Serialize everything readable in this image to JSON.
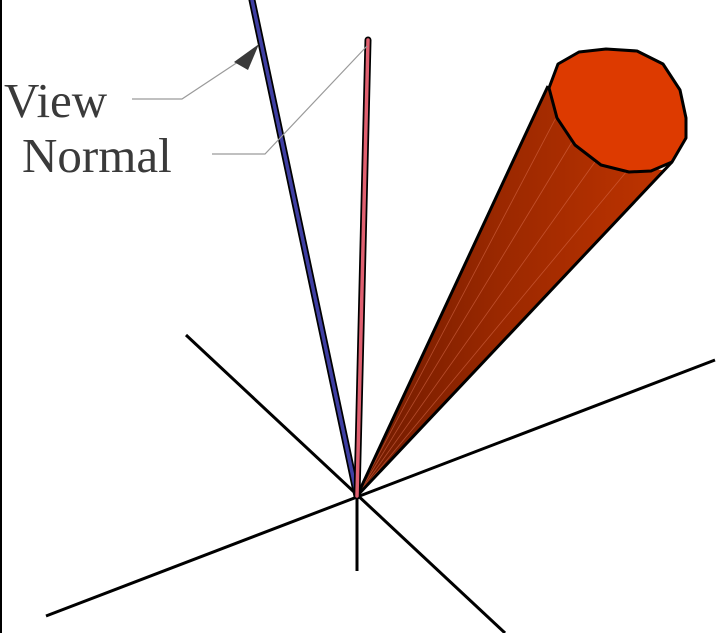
{
  "labels": {
    "view": "View",
    "normal": "Normal"
  },
  "colors": {
    "background": "#ffffff",
    "axes": "#000000",
    "view_vector": "#3f3fa3",
    "normal_vector": "#e06070",
    "cone_cap": "#dd3a00",
    "cone_body_light": "#b83000",
    "cone_body_dark": "#7a1e00",
    "leader_lines": "#9a9a9a",
    "arrowhead": "#3a3a3a",
    "label_text": "#3a3a3a"
  }
}
